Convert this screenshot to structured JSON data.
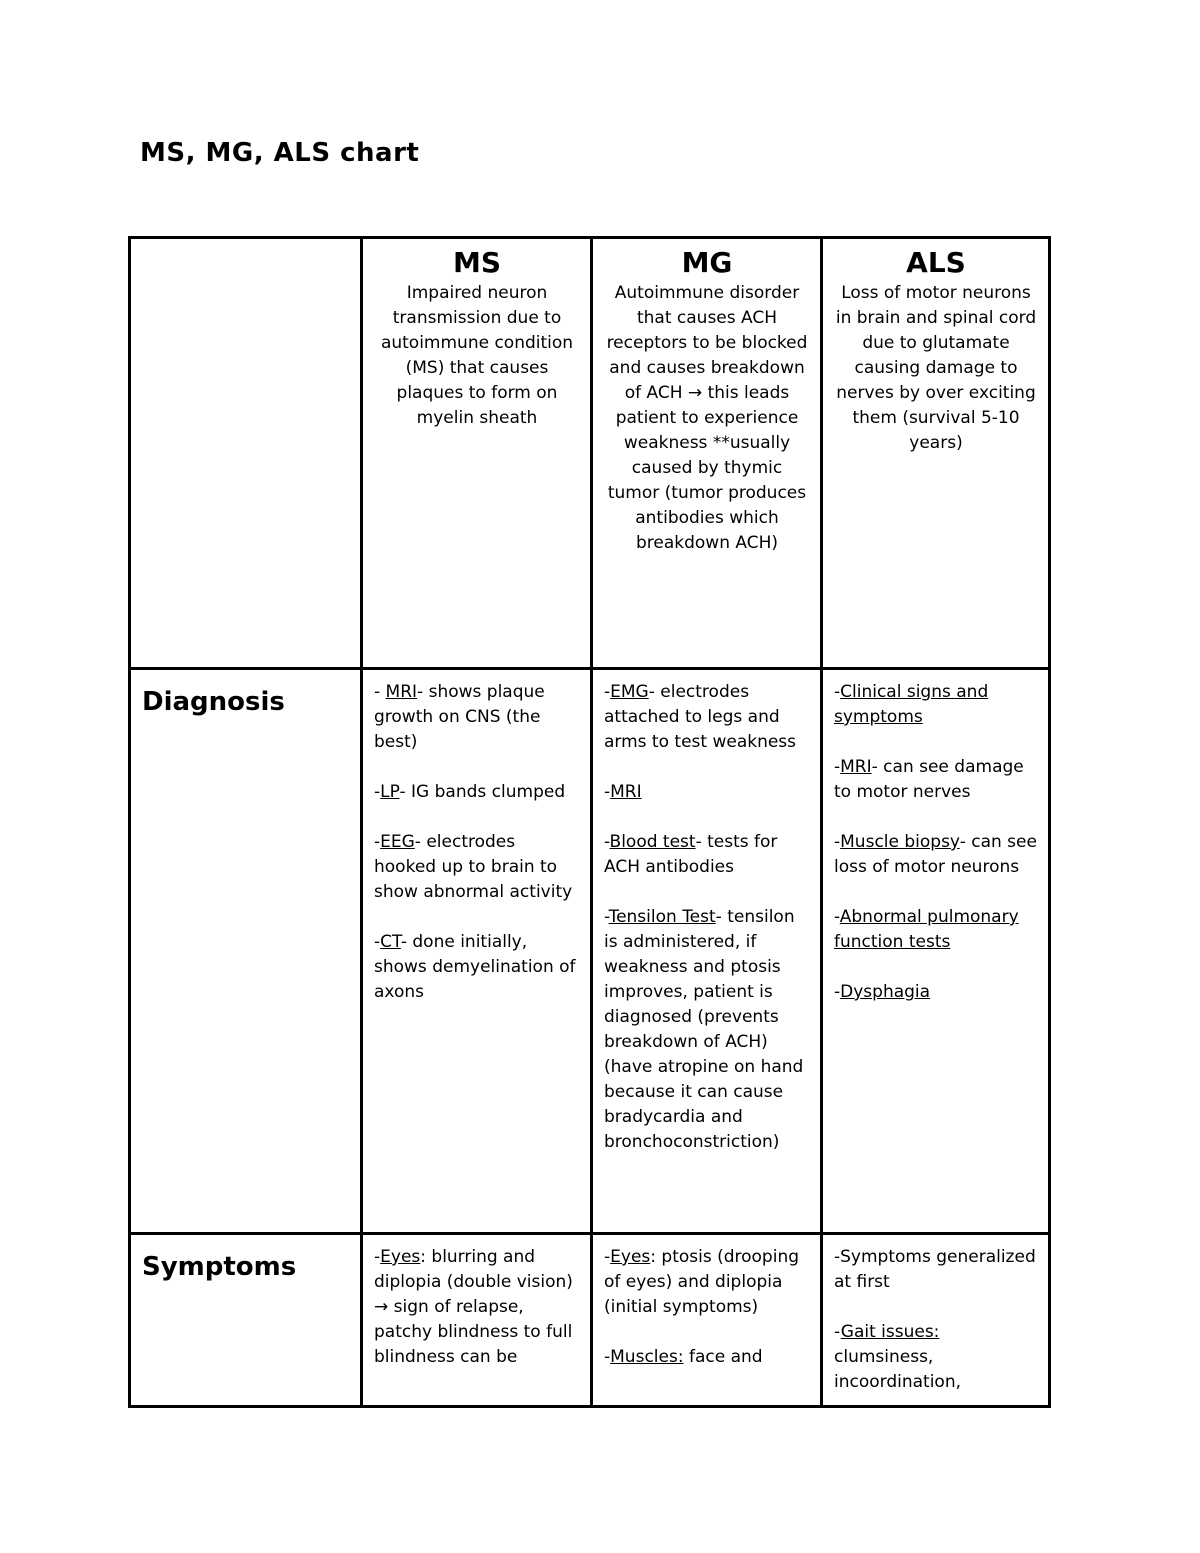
{
  "page": {
    "title": "MS, MG, ALS chart"
  },
  "table": {
    "rows": [
      {
        "name": "header",
        "cells": [
          {
            "name": "corner-empty",
            "blocks": []
          },
          {
            "name": "ms-header",
            "blocks": [
              {
                "style": "col-title",
                "segments": [
                  {
                    "t": "MS"
                  }
                ]
              },
              {
                "style": "body",
                "segments": [
                  {
                    "t": "Impaired neuron transmission due to autoimmune condition (MS) that causes plaques to form on myelin sheath"
                  }
                ]
              }
            ]
          },
          {
            "name": "mg-header",
            "blocks": [
              {
                "style": "col-title",
                "segments": [
                  {
                    "t": "MG"
                  }
                ]
              },
              {
                "style": "body",
                "segments": [
                  {
                    "t": "Autoimmune disorder that causes ACH receptors to be blocked and causes breakdown of ACH → this leads patient to experience weakness **usually caused by thymic tumor (tumor produces antibodies which breakdown ACH)"
                  }
                ]
              }
            ]
          },
          {
            "name": "als-header",
            "blocks": [
              {
                "style": "col-title",
                "segments": [
                  {
                    "t": "ALS"
                  }
                ]
              },
              {
                "style": "body",
                "segments": [
                  {
                    "t": "Loss of motor neurons in brain and spinal cord due to glutamate causing damage to nerves by over exciting them (survival 5-10 years)"
                  }
                ]
              }
            ]
          }
        ]
      },
      {
        "name": "diagnosis",
        "cells": [
          {
            "name": "diagnosis-label",
            "blocks": [
              {
                "style": "row-label",
                "segments": [
                  {
                    "t": "Diagnosis"
                  }
                ]
              }
            ]
          },
          {
            "name": "diagnosis-ms",
            "blocks": [
              {
                "style": "body",
                "segments": [
                  {
                    "t": "- "
                  },
                  {
                    "t": "MRI",
                    "u": true
                  },
                  {
                    "t": "- shows plaque growth on CNS (the best)"
                  }
                ]
              },
              {
                "style": "body",
                "segments": [
                  {
                    "t": "-"
                  },
                  {
                    "t": "LP",
                    "u": true
                  },
                  {
                    "t": "- IG bands clumped"
                  }
                ]
              },
              {
                "style": "body",
                "segments": [
                  {
                    "t": "-"
                  },
                  {
                    "t": "EEG",
                    "u": true
                  },
                  {
                    "t": "- electrodes hooked up to brain to show abnormal activity"
                  }
                ]
              },
              {
                "style": "body",
                "segments": [
                  {
                    "t": "-"
                  },
                  {
                    "t": "CT",
                    "u": true
                  },
                  {
                    "t": "- done initially, shows demyelination of axons"
                  }
                ]
              }
            ]
          },
          {
            "name": "diagnosis-mg",
            "blocks": [
              {
                "style": "body",
                "segments": [
                  {
                    "t": "-"
                  },
                  {
                    "t": "EMG",
                    "u": true
                  },
                  {
                    "t": "- electrodes attached to legs and arms to test weakness"
                  }
                ]
              },
              {
                "style": "body",
                "segments": [
                  {
                    "t": "-"
                  },
                  {
                    "t": "MRI",
                    "u": true
                  }
                ]
              },
              {
                "style": "body",
                "segments": [
                  {
                    "t": "-"
                  },
                  {
                    "t": "Blood test",
                    "u": true
                  },
                  {
                    "t": "- tests for ACH antibodies"
                  }
                ]
              },
              {
                "style": "body",
                "segments": [
                  {
                    "t": "-"
                  },
                  {
                    "t": "Tensilon Test",
                    "u": true
                  },
                  {
                    "t": "- tensilon is administered, if weakness and ptosis improves, patient is diagnosed (prevents breakdown of ACH) (have atropine on hand because it can cause bradycardia and bronchoconstriction)"
                  }
                ]
              }
            ]
          },
          {
            "name": "diagnosis-als",
            "blocks": [
              {
                "style": "body",
                "segments": [
                  {
                    "t": "-"
                  },
                  {
                    "t": "Clinical signs and symptoms",
                    "u": true
                  }
                ]
              },
              {
                "style": "body",
                "segments": [
                  {
                    "t": "-"
                  },
                  {
                    "t": "MRI",
                    "u": true
                  },
                  {
                    "t": "- can see damage to motor nerves"
                  }
                ]
              },
              {
                "style": "body",
                "segments": [
                  {
                    "t": "-"
                  },
                  {
                    "t": "Muscle biopsy",
                    "u": true
                  },
                  {
                    "t": "- can see loss of motor neurons"
                  }
                ]
              },
              {
                "style": "body",
                "segments": [
                  {
                    "t": "-"
                  },
                  {
                    "t": "Abnormal pulmonary function tests",
                    "u": true
                  }
                ]
              },
              {
                "style": "body",
                "segments": [
                  {
                    "t": "-"
                  },
                  {
                    "t": "Dysphagia",
                    "u": true
                  }
                ]
              }
            ]
          }
        ]
      },
      {
        "name": "symptoms",
        "cells": [
          {
            "name": "symptoms-label",
            "blocks": [
              {
                "style": "row-label",
                "segments": [
                  {
                    "t": "Symptoms"
                  }
                ]
              }
            ]
          },
          {
            "name": "symptoms-ms",
            "blocks": [
              {
                "style": "body",
                "segments": [
                  {
                    "t": "-"
                  },
                  {
                    "t": "Eyes",
                    "u": true
                  },
                  {
                    "t": ": blurring and diplopia (double vision) → sign of relapse, patchy blindness to full blindness can be"
                  }
                ]
              }
            ]
          },
          {
            "name": "symptoms-mg",
            "blocks": [
              {
                "style": "body",
                "segments": [
                  {
                    "t": "-"
                  },
                  {
                    "t": "Eyes",
                    "u": true
                  },
                  {
                    "t": ": ptosis (drooping of eyes) and diplopia (initial symptoms)"
                  }
                ]
              },
              {
                "style": "body",
                "segments": [
                  {
                    "t": "-"
                  },
                  {
                    "t": "Muscles:",
                    "u": true
                  },
                  {
                    "t": " face and"
                  }
                ]
              }
            ]
          },
          {
            "name": "symptoms-als",
            "blocks": [
              {
                "style": "body",
                "segments": [
                  {
                    "t": "-Symptoms generalized at first"
                  }
                ]
              },
              {
                "style": "body",
                "segments": [
                  {
                    "t": "-"
                  },
                  {
                    "t": "Gait issues:",
                    "u": true
                  },
                  {
                    "t": " clumsiness, incoordination,"
                  }
                ]
              }
            ]
          }
        ]
      }
    ]
  }
}
